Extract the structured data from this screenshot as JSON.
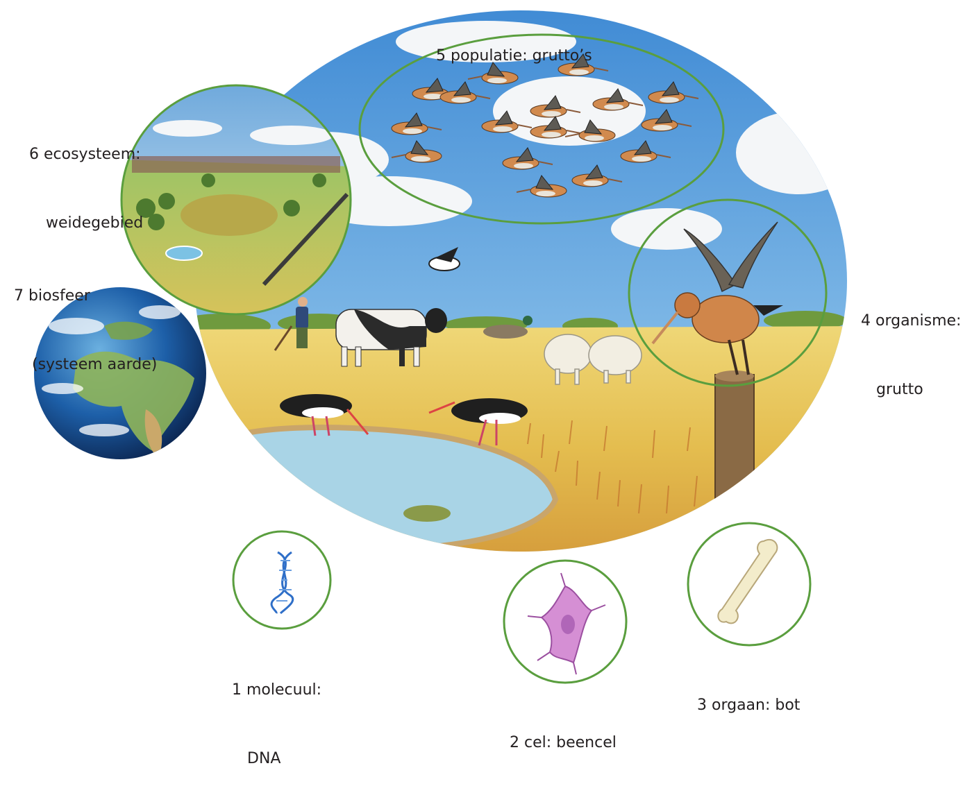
{
  "levels": [
    {
      "num": "1",
      "lines": [
        "1 molecuul:",
        "DNA"
      ]
    },
    {
      "num": "2",
      "lines": [
        "2 cel: beencel"
      ]
    },
    {
      "num": "3",
      "lines": [
        "3 orgaan: bot"
      ]
    },
    {
      "num": "4",
      "lines": [
        "4 organisme:",
        "grutto"
      ]
    },
    {
      "num": "5",
      "lines": [
        "5 populatie: grutto’s"
      ]
    },
    {
      "num": "6",
      "lines": [
        "6 ecosysteem:",
        "weidegebied"
      ]
    },
    {
      "num": "7",
      "lines": [
        "7 biosfeer",
        "(systeem aarde)"
      ]
    }
  ],
  "colors": {
    "ring": "#5a9e3e",
    "sky": "#5a9ed8",
    "field": "#e6c350",
    "water": "#a9d4e6",
    "text": "#231f20"
  }
}
